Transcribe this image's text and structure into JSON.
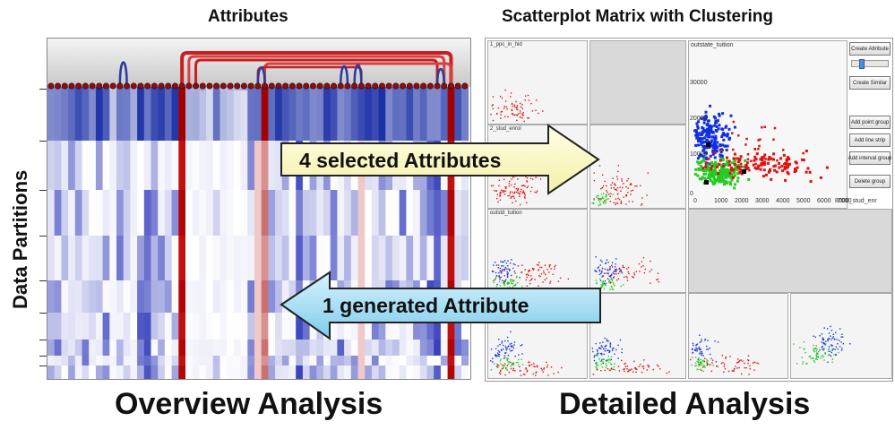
{
  "titles": {
    "attributes": "Attributes",
    "scatterplot": "Scatterplot Matrix with Clustering"
  },
  "ylabel": "Data Partitions",
  "captions": {
    "overview": "Overview Analysis",
    "detailed": "Detailed Analysis"
  },
  "arrows": {
    "selected": "4 selected Attributes",
    "generated": "1 generated Attribute"
  },
  "scatter": {
    "main_x_label": "outstate_tuition",
    "main_x_label_right": "8000_stud_enr",
    "main_y_ticks": [
      "30000",
      "20000",
      "10000",
      "0"
    ],
    "main_x_ticks": [
      "0",
      "1000",
      "2000",
      "3000",
      "4000",
      "5000",
      "6000",
      "7000",
      "8000"
    ],
    "cell_labels": [
      "1_ppc_in_hid",
      "2_stud_enrol",
      "outstd_tuition"
    ]
  },
  "controls": {
    "create_attribute": "Create Attribute",
    "create_similar": "Create Similar",
    "add_point_group": "Add point group",
    "add_line_strip": "Add line strip",
    "add_interval_group": "Add interval group",
    "delete_group": "Delete group"
  },
  "colors": {
    "blue_strong": "#1a2fa6",
    "red_strong": "#a30000",
    "cluster_red": "#e01010",
    "cluster_blue": "#1030e0",
    "cluster_green": "#22cc22",
    "arrow_yellow": "#ffffc8",
    "arrow_cyan": "#9fdcf4"
  }
}
